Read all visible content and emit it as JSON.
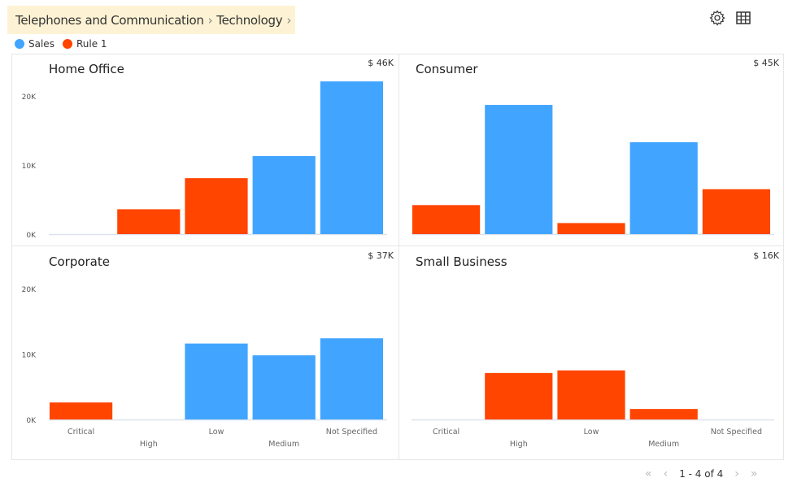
{
  "breadcrumb": {
    "items": [
      "Telephones and Communication",
      "Technology"
    ]
  },
  "toolbar": {
    "icons": [
      "gear-icon",
      "table-grid-icon"
    ]
  },
  "legend": [
    {
      "label": "Sales",
      "color": "#41A5FF"
    },
    {
      "label": "Rule 1",
      "color": "#FF4500"
    }
  ],
  "pager": {
    "text": "1 - 4 of 4"
  },
  "chart_data": {
    "type": "bar",
    "categories": [
      "Critical",
      "High",
      "Low",
      "Medium",
      "Not Specified"
    ],
    "yticks": [
      "0K",
      "10K",
      "20K"
    ],
    "ylim": [
      0,
      22500
    ],
    "panels": [
      {
        "title": "Home Office",
        "total": "$ 46K",
        "values": [
          0,
          3600,
          8100,
          11300,
          22100
        ],
        "colors": [
          "",
          "#FF4500",
          "#FF4500",
          "#41A5FF",
          "#41A5FF"
        ]
      },
      {
        "title": "Consumer",
        "total": "$ 45K",
        "values": [
          4200,
          18700,
          1600,
          13300,
          6500
        ],
        "colors": [
          "#FF4500",
          "#41A5FF",
          "#FF4500",
          "#41A5FF",
          "#FF4500"
        ]
      },
      {
        "title": "Corporate",
        "total": "$ 37K",
        "values": [
          2600,
          0,
          11600,
          9800,
          12400
        ],
        "colors": [
          "#FF4500",
          "",
          "#41A5FF",
          "#41A5FF",
          "#41A5FF"
        ]
      },
      {
        "title": "Small Business",
        "total": "$ 16K",
        "values": [
          0,
          7100,
          7500,
          1600,
          0
        ],
        "colors": [
          "",
          "#FF4500",
          "#FF4500",
          "#FF4500",
          ""
        ]
      }
    ]
  }
}
